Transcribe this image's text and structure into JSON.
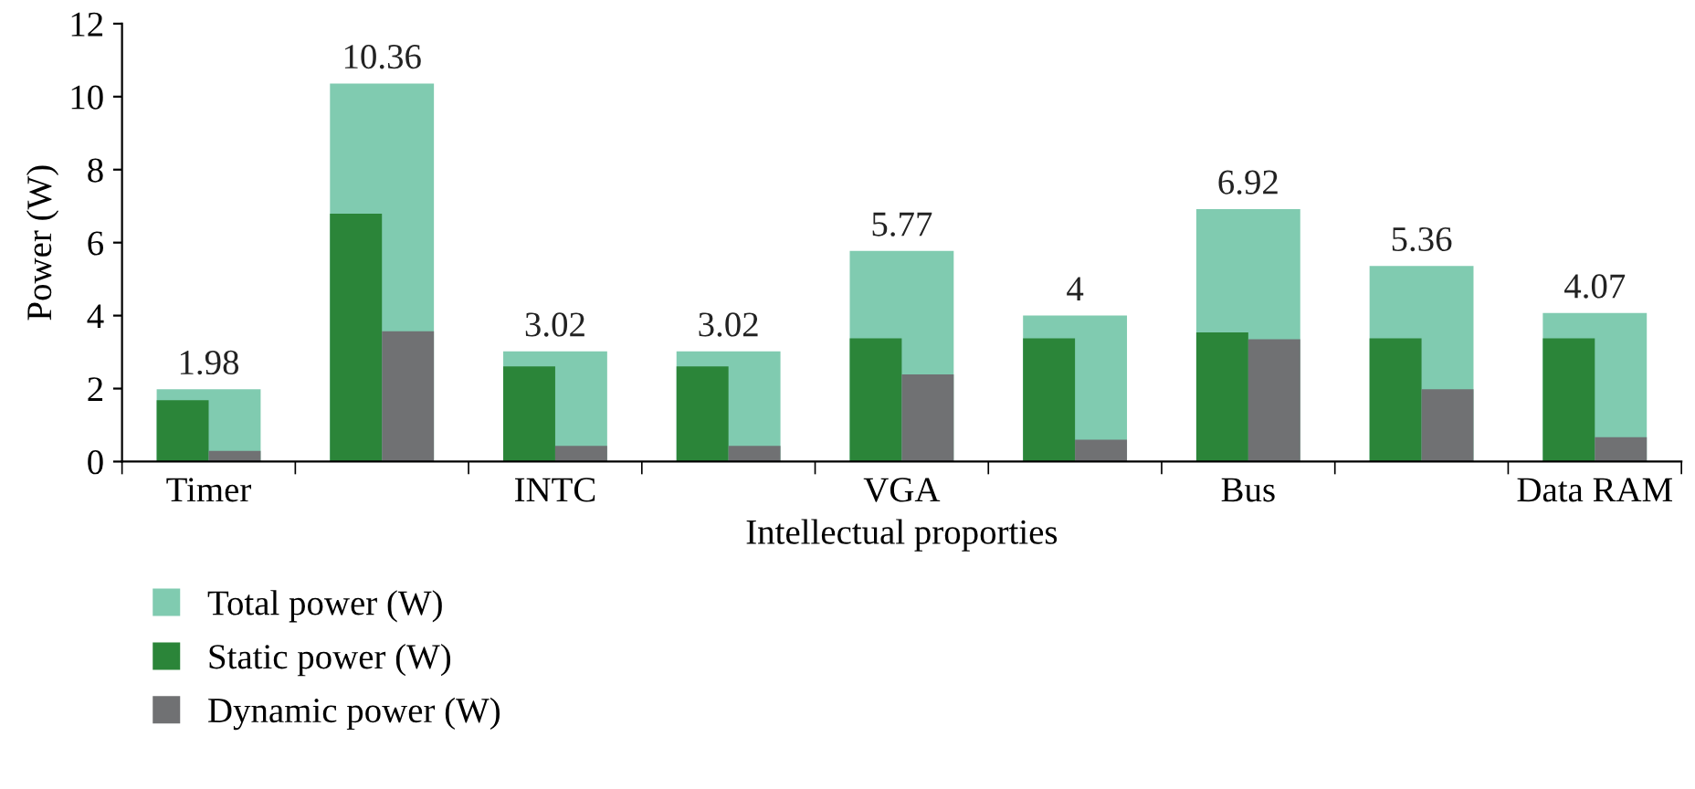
{
  "chart_data": {
    "type": "bar",
    "xlabel": "Intellectual proporties",
    "ylabel": "Power (W)",
    "categories": [
      "Timer",
      null,
      "INTC",
      null,
      "VGA",
      null,
      "Bus",
      null,
      "Data RAM"
    ],
    "series": [
      {
        "name": "Total power (W)",
        "color": "#80cbb0",
        "values": [
          1.98,
          10.36,
          3.02,
          3.02,
          5.77,
          4,
          6.92,
          5.36,
          4.07
        ],
        "value_labels": [
          "1.98",
          "10.36",
          "3.02",
          "3.02",
          "5.77",
          "4",
          "6.92",
          "5.36",
          "4.07"
        ]
      },
      {
        "name": "Static power (W)",
        "color": "#2b8539",
        "values": [
          1.68,
          6.79,
          2.61,
          2.61,
          3.38,
          3.38,
          3.54,
          3.38,
          3.38
        ]
      },
      {
        "name": "Dynamic power (W)",
        "color": "#707173",
        "values": [
          0.29,
          3.57,
          0.43,
          0.43,
          2.39,
          0.6,
          3.35,
          1.98,
          0.67
        ]
      }
    ],
    "ylim": [
      0,
      12
    ],
    "yticks": [
      0,
      2,
      4,
      6,
      8,
      10,
      12
    ],
    "grid": false,
    "legend": "bottom left"
  }
}
